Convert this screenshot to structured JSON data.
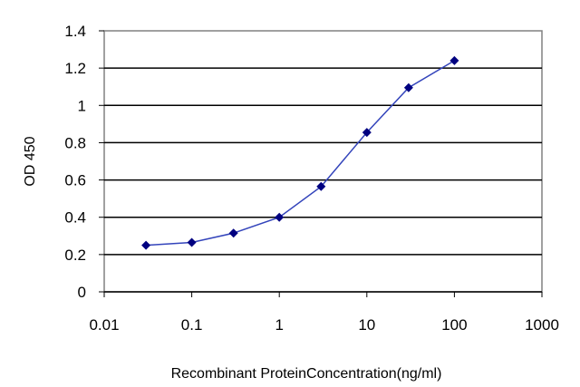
{
  "chart_data": {
    "type": "line",
    "title": "",
    "xlabel": "Recombinant ProteinConcentration(ng/ml)",
    "ylabel": "OD 450",
    "x_scale": "log",
    "xlim": [
      0.01,
      1000
    ],
    "ylim": [
      0,
      1.4
    ],
    "x_ticks": [
      "0.01",
      "0.1",
      "1",
      "10",
      "100",
      "1000"
    ],
    "y_ticks": [
      "0",
      "0.2",
      "0.4",
      "0.6",
      "0.8",
      "1",
      "1.2",
      "1.4"
    ],
    "grid": "horizontal",
    "legend": "none",
    "series": [
      {
        "x": [
          0.03,
          0.1,
          0.3,
          1,
          3,
          10,
          30,
          100
        ],
        "y": [
          0.25,
          0.265,
          0.315,
          0.4,
          0.565,
          0.855,
          1.095,
          1.24
        ],
        "color": "#3344bb",
        "marker_color": "#000080"
      }
    ]
  }
}
